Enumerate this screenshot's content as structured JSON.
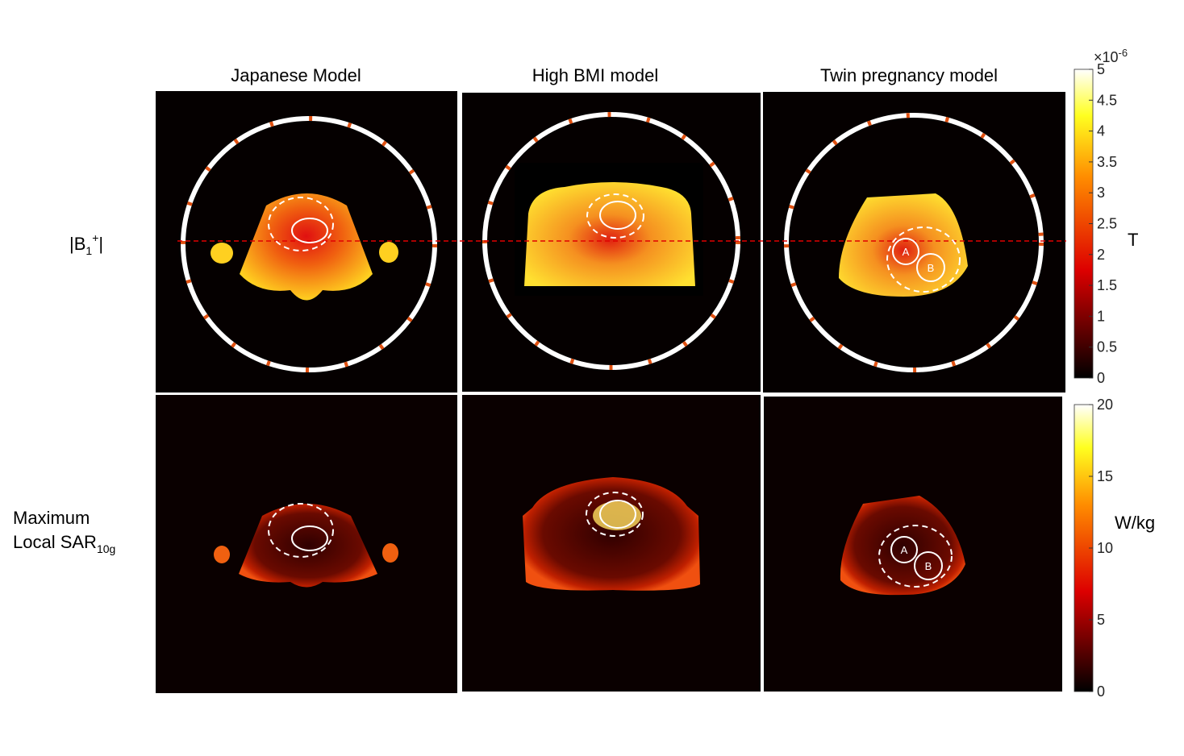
{
  "columns": [
    "Japanese Model",
    "High BMI model",
    "Twin pregnancy model"
  ],
  "rows": [
    {
      "label": [
        "|B",
        "1",
        "+",
        "|"
      ]
    },
    {
      "label": [
        "Maximum",
        "Local SAR",
        "10g"
      ]
    }
  ],
  "markers": [
    "A",
    "B"
  ],
  "colorbars": [
    {
      "range": [
        0,
        5
      ],
      "ticks": [
        0,
        0.5,
        1,
        1.5,
        2,
        2.5,
        3,
        3.5,
        4,
        4.5,
        5
      ],
      "multiplier": "×10",
      "exponent": "-6",
      "unit": "T"
    },
    {
      "range": [
        0,
        20
      ],
      "ticks": [
        0,
        5,
        10,
        15,
        20
      ],
      "unit": "W/kg"
    }
  ]
}
